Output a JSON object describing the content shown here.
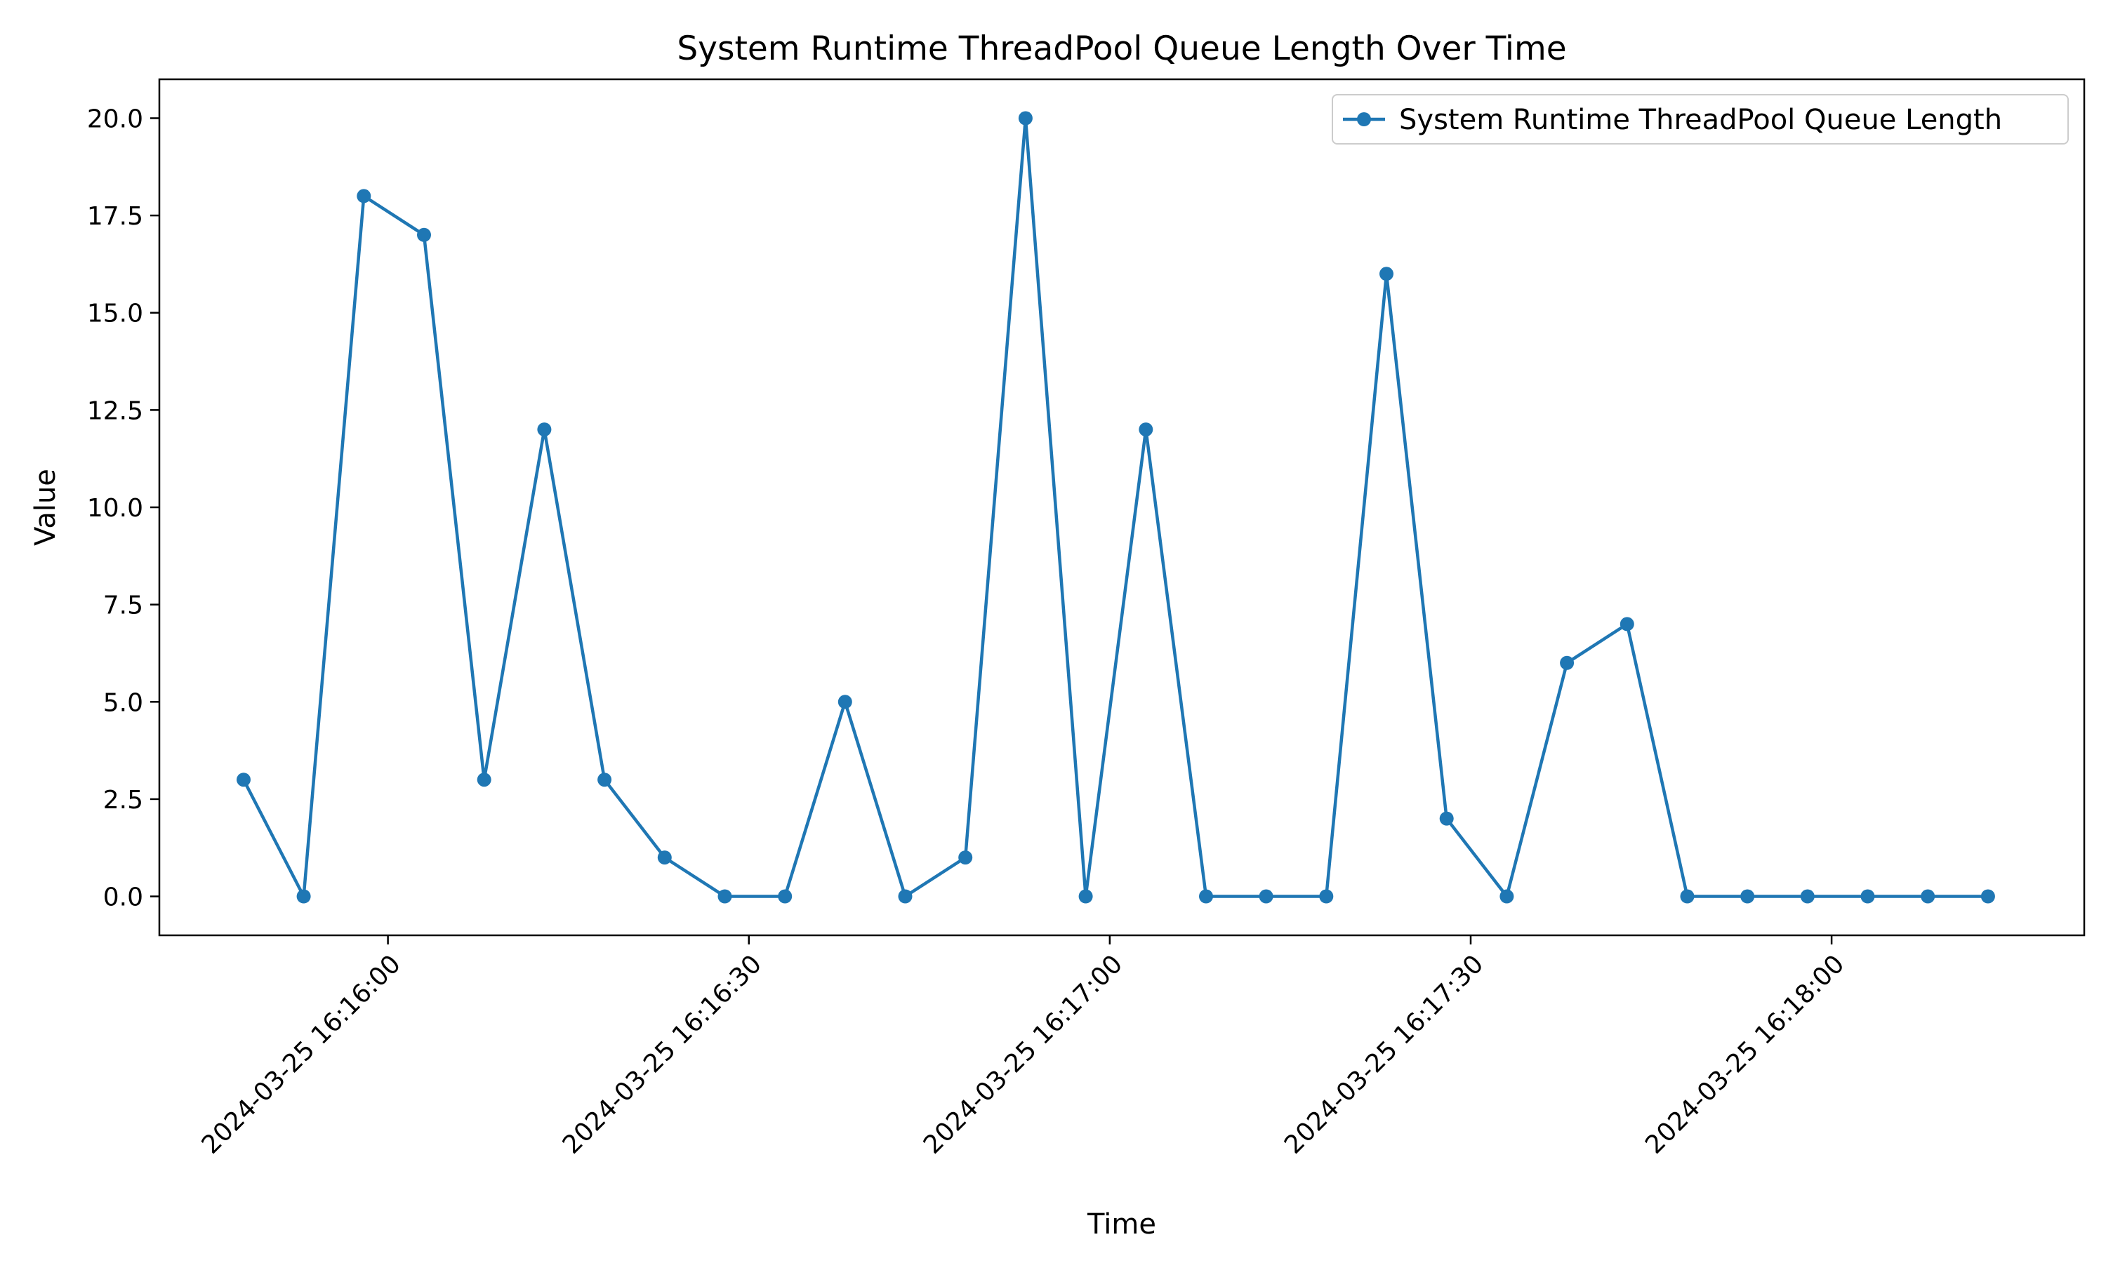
{
  "chart_data": {
    "type": "line",
    "title": "System Runtime ThreadPool Queue Length Over Time",
    "xlabel": "Time",
    "ylabel": "Value",
    "x_tick_labels": [
      "2024-03-25 16:16:00",
      "2024-03-25 16:16:30",
      "2024-03-25 16:17:00",
      "2024-03-25 16:17:30",
      "2024-03-25 16:18:00"
    ],
    "y_ticks": [
      "0.0",
      "2.5",
      "5.0",
      "7.5",
      "10.0",
      "12.5",
      "15.0",
      "17.5",
      "20.0"
    ],
    "ylim": [
      -1,
      21
    ],
    "xlim": [
      "2024-03-25 16:15:41",
      "2024-03-25 16:18:21"
    ],
    "grid": false,
    "legend_position": "top-right",
    "series": [
      {
        "name": "System Runtime ThreadPool Queue Length",
        "color": "#1f77b4",
        "marker": "circle",
        "x": [
          "2024-03-25 16:15:48",
          "2024-03-25 16:15:53",
          "2024-03-25 16:15:58",
          "2024-03-25 16:16:03",
          "2024-03-25 16:16:08",
          "2024-03-25 16:16:13",
          "2024-03-25 16:16:18",
          "2024-03-25 16:16:23",
          "2024-03-25 16:16:28",
          "2024-03-25 16:16:33",
          "2024-03-25 16:16:38",
          "2024-03-25 16:16:43",
          "2024-03-25 16:16:48",
          "2024-03-25 16:16:53",
          "2024-03-25 16:16:58",
          "2024-03-25 16:17:03",
          "2024-03-25 16:17:08",
          "2024-03-25 16:17:13",
          "2024-03-25 16:17:18",
          "2024-03-25 16:17:23",
          "2024-03-25 16:17:28",
          "2024-03-25 16:17:33",
          "2024-03-25 16:17:38",
          "2024-03-25 16:17:43",
          "2024-03-25 16:17:48",
          "2024-03-25 16:17:53",
          "2024-03-25 16:17:58",
          "2024-03-25 16:18:03",
          "2024-03-25 16:18:08",
          "2024-03-25 16:18:13"
        ],
        "values": [
          3,
          0,
          18,
          17,
          3,
          12,
          3,
          1,
          0,
          0,
          5,
          0,
          1,
          20,
          0,
          12,
          0,
          0,
          0,
          16,
          2,
          0,
          6,
          7,
          0,
          0,
          0,
          0,
          0,
          0
        ]
      }
    ]
  }
}
